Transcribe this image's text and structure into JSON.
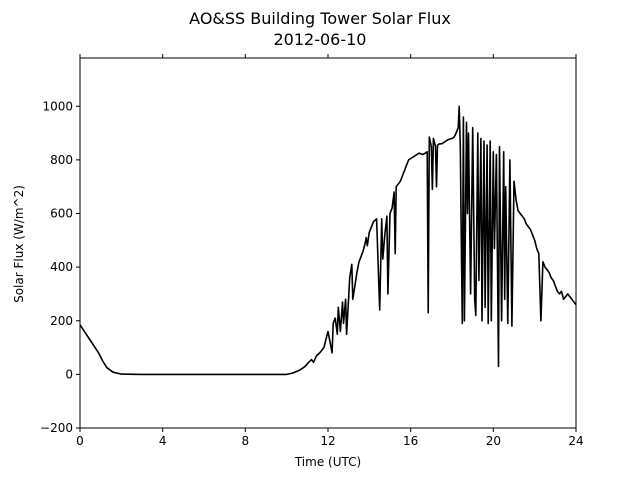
{
  "chart_data": {
    "type": "line",
    "title": "AO&SS Building Tower Solar Flux",
    "subtitle": "2012-06-10",
    "xlabel": "Time (UTC)",
    "ylabel": "Solar Flux (W/m^2)",
    "xlim": [
      0,
      24
    ],
    "ylim": [
      -200,
      1180
    ],
    "xticks": [
      0,
      4,
      8,
      12,
      16,
      20,
      24
    ],
    "yticks": [
      -200,
      0,
      200,
      400,
      600,
      800,
      1000
    ],
    "grid": false,
    "line_color": "#000000",
    "series": [
      {
        "x": [
          0,
          0.3,
          0.6,
          0.9,
          1.1,
          1.3,
          1.6,
          2.0,
          3,
          4,
          5,
          6,
          7,
          8,
          9,
          10,
          10.3,
          10.6,
          10.9,
          11.0,
          11.2,
          11.3,
          11.45,
          11.6,
          11.8,
          11.9,
          12.0,
          12.1,
          12.2,
          12.25,
          12.35,
          12.45,
          12.5,
          12.6,
          12.7,
          12.75,
          12.85,
          12.9,
          13.0,
          13.05,
          13.15,
          13.2,
          13.3,
          13.4,
          13.5,
          13.6,
          13.7,
          13.8,
          13.85,
          13.9,
          14.0,
          14.1,
          14.2,
          14.35,
          14.5,
          14.6,
          14.65,
          14.75,
          14.85,
          14.9,
          15.0,
          15.1,
          15.2,
          15.25,
          15.3,
          15.5,
          15.6,
          15.7,
          15.8,
          15.9,
          16.0,
          16.2,
          16.4,
          16.6,
          16.8,
          16.85,
          16.9,
          17.0,
          17.05,
          17.1,
          17.2,
          17.25,
          17.3,
          17.4,
          17.5,
          17.6,
          17.8,
          18.0,
          18.1,
          18.2,
          18.3,
          18.35,
          18.4,
          18.45,
          18.5,
          18.55,
          18.6,
          18.7,
          18.75,
          18.8,
          18.9,
          19.0,
          19.1,
          19.15,
          19.25,
          19.3,
          19.4,
          19.45,
          19.55,
          19.6,
          19.7,
          19.75,
          19.85,
          19.9,
          20.0,
          20.05,
          20.15,
          20.25,
          20.3,
          20.4,
          20.5,
          20.55,
          20.6,
          20.7,
          20.8,
          20.9,
          21.0,
          21.1,
          21.2,
          21.3,
          21.4,
          21.5,
          21.6,
          21.8,
          21.9,
          22.0,
          22.1,
          22.2,
          22.3,
          22.4,
          22.5,
          22.6,
          22.7,
          22.8,
          22.9,
          23.0,
          23.1,
          23.2,
          23.3,
          23.4,
          23.5,
          23.6,
          23.7,
          23.8,
          23.9,
          24.0
        ],
        "y": [
          185,
          150,
          115,
          80,
          50,
          25,
          8,
          1,
          0,
          0,
          0,
          0,
          0,
          0,
          0,
          0,
          5,
          15,
          30,
          40,
          55,
          45,
          70,
          80,
          100,
          130,
          160,
          120,
          80,
          190,
          210,
          150,
          250,
          160,
          270,
          190,
          280,
          150,
          290,
          360,
          410,
          280,
          330,
          380,
          420,
          440,
          460,
          490,
          510,
          480,
          530,
          550,
          570,
          580,
          240,
          580,
          430,
          520,
          590,
          300,
          600,
          620,
          680,
          450,
          700,
          720,
          740,
          760,
          780,
          800,
          805,
          815,
          825,
          820,
          830,
          230,
          885,
          850,
          690,
          880,
          850,
          700,
          855,
          860,
          860,
          865,
          875,
          880,
          885,
          900,
          920,
          1000,
          850,
          500,
          190,
          960,
          200,
          940,
          600,
          900,
          300,
          920,
          280,
          220,
          900,
          350,
          880,
          200,
          870,
          250,
          855,
          190,
          870,
          200,
          830,
          470,
          820,
          30,
          850,
          200,
          830,
          280,
          700,
          190,
          800,
          180,
          720,
          650,
          610,
          600,
          590,
          580,
          560,
          540,
          520,
          500,
          470,
          450,
          200,
          420,
          400,
          390,
          380,
          360,
          350,
          330,
          310,
          300,
          310,
          280,
          290,
          300,
          290,
          280,
          270,
          260
        ]
      }
    ]
  }
}
